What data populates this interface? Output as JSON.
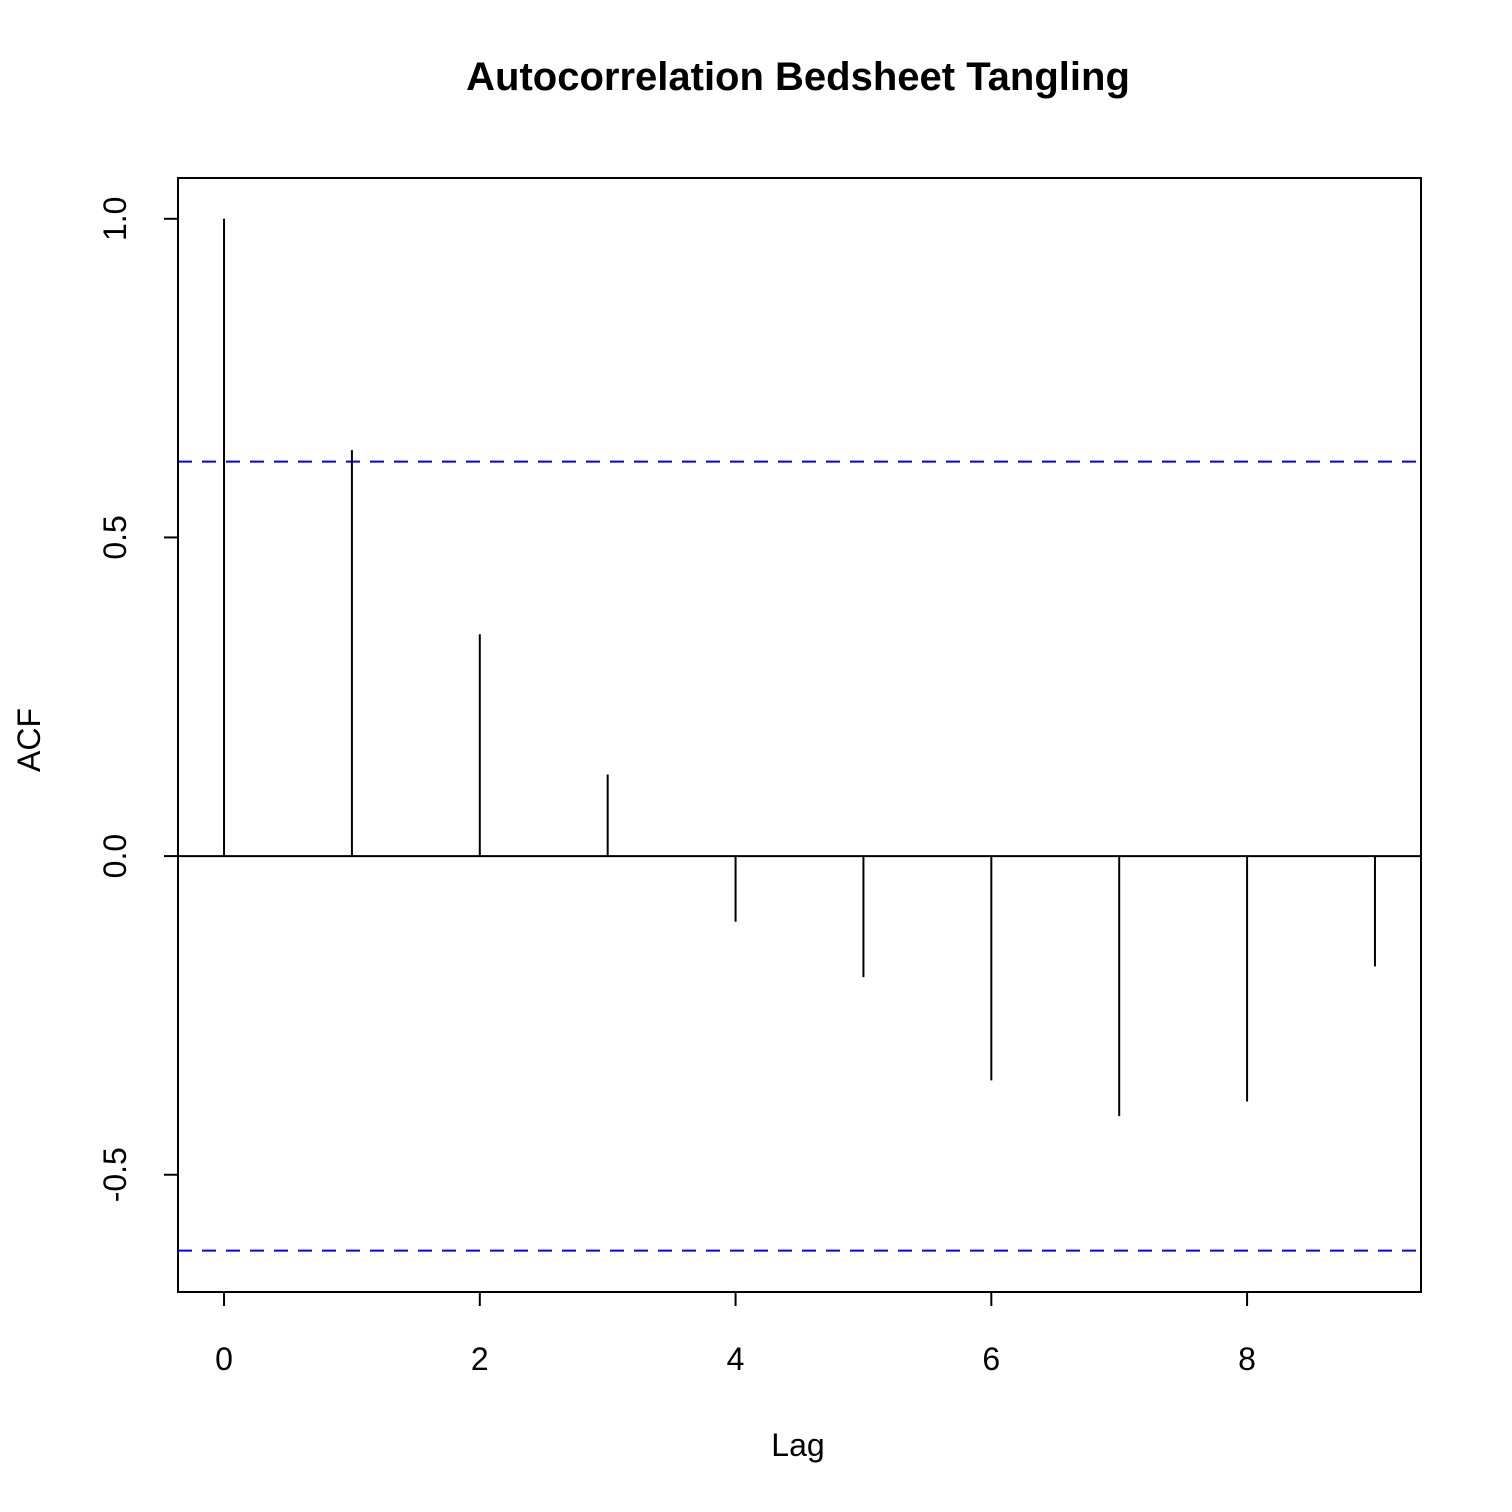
{
  "chart_data": {
    "type": "bar",
    "title": "Autocorrelation Bedsheet Tangling",
    "xlabel": "Lag",
    "ylabel": "ACF",
    "x": [
      0,
      1,
      2,
      3,
      4,
      5,
      6,
      7,
      8,
      9
    ],
    "values": [
      1.0,
      0.637,
      0.348,
      0.128,
      -0.103,
      -0.19,
      -0.352,
      -0.408,
      -0.385,
      -0.173
    ],
    "confidence_bound": 0.619,
    "confidence_line_color": "#0000ff",
    "xlim": [
      -0.36,
      9.36
    ],
    "ylim": [
      -0.684,
      1.064
    ],
    "xticks": [
      0,
      2,
      4,
      6,
      8
    ],
    "xtick_labels": [
      "0",
      "2",
      "4",
      "6",
      "8"
    ],
    "yticks": [
      -0.5,
      0.0,
      0.5,
      1.0
    ],
    "ytick_labels": [
      "-0.5",
      "0.0",
      "0.5",
      "1.0"
    ],
    "grid": false,
    "legend": "none"
  }
}
